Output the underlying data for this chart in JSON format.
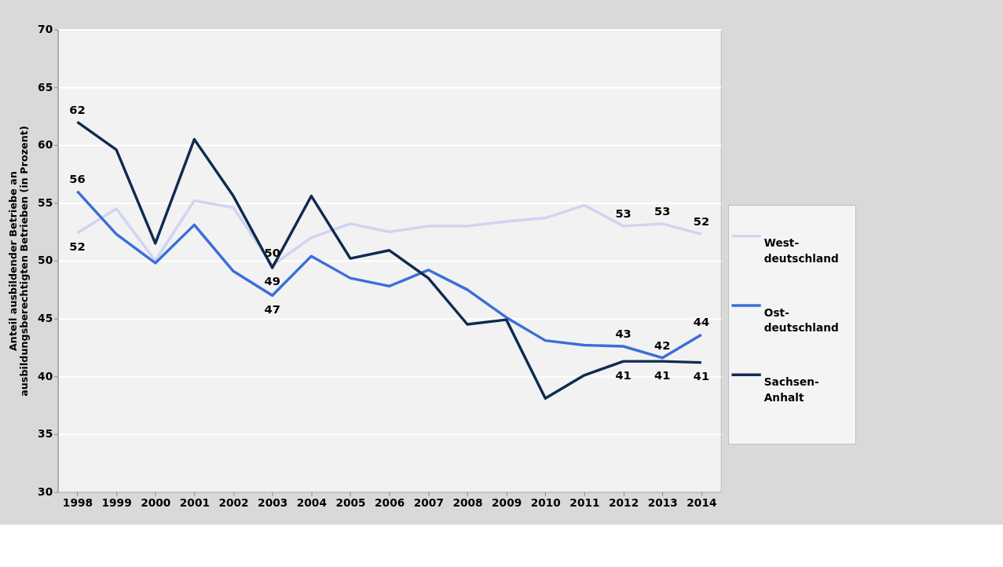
{
  "chart_data": {
    "type": "line",
    "ylabel": "Anteil ausbildender Betriebe an ausbildungsberechtigten Betrieben (in Prozent)",
    "categories": [
      "1998",
      "1999",
      "2000",
      "2001",
      "2002",
      "2003",
      "2004",
      "2005",
      "2006",
      "2007",
      "2008",
      "2009",
      "2010",
      "2011",
      "2012",
      "2013",
      "2014"
    ],
    "series": [
      {
        "name": "West-deutschland",
        "color": "#d0d4f2",
        "values": [
          52.4,
          54.5,
          50.0,
          55.2,
          54.6,
          49.6,
          52.0,
          53.2,
          52.5,
          53.0,
          53.0,
          53.4,
          53.7,
          54.8,
          53.0,
          53.2,
          52.3
        ],
        "value_labels": [
          "52",
          null,
          null,
          null,
          null,
          "50",
          null,
          null,
          null,
          null,
          null,
          null,
          null,
          null,
          "53",
          "53",
          "52"
        ]
      },
      {
        "name": "Ost-deutschland",
        "color": "#3a6fd8",
        "values": [
          56.0,
          52.3,
          49.8,
          53.1,
          49.1,
          47.0,
          50.4,
          48.5,
          47.8,
          49.2,
          47.5,
          45.1,
          43.1,
          42.7,
          42.6,
          41.6,
          43.6
        ],
        "value_labels": [
          "56",
          null,
          null,
          null,
          null,
          "47",
          null,
          null,
          null,
          null,
          null,
          null,
          null,
          null,
          "43",
          "42",
          "44"
        ]
      },
      {
        "name": "Sachsen-Anhalt",
        "color": "#0f2b50",
        "values": [
          62.0,
          59.6,
          51.5,
          60.5,
          55.6,
          49.4,
          55.6,
          50.2,
          50.9,
          48.5,
          44.5,
          44.9,
          38.1,
          40.1,
          41.3,
          41.3,
          41.2
        ],
        "value_labels": [
          "62",
          null,
          null,
          null,
          null,
          "49",
          null,
          null,
          null,
          null,
          null,
          null,
          null,
          null,
          "41",
          "41",
          "41"
        ]
      }
    ],
    "ylim": [
      30,
      70
    ],
    "yticks": [
      30,
      35,
      40,
      45,
      50,
      55,
      60,
      65,
      70
    ],
    "grid": "y",
    "legend": "right",
    "marker": "none",
    "line_style": "solid"
  }
}
